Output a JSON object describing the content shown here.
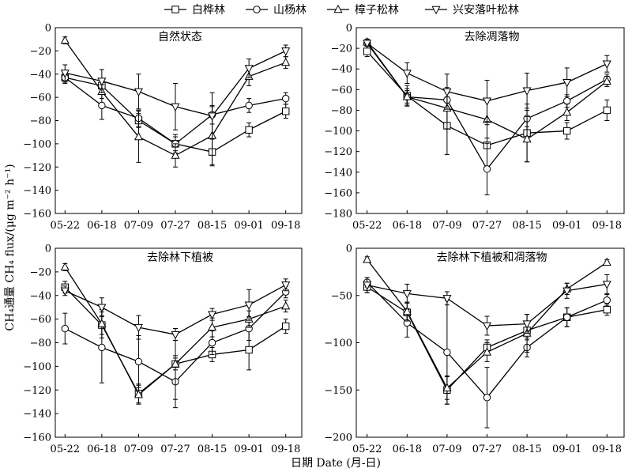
{
  "figure": {
    "ylabel": "CH₄通量 CH₄ flux/(μg m⁻² h⁻¹)",
    "xlabel": "日期 Date (月-日)"
  },
  "legend": [
    {
      "name": "白桦林",
      "marker": "square"
    },
    {
      "name": "山杨林",
      "marker": "circle"
    },
    {
      "name": "樟子松林",
      "marker": "triangle-up"
    },
    {
      "name": "兴安落叶松林",
      "marker": "triangle-down"
    }
  ],
  "chart_data": [
    {
      "type": "line",
      "title": "自然状态",
      "categories": [
        "05-22",
        "06-18",
        "07-09",
        "07-27",
        "08-15",
        "09-01",
        "09-18"
      ],
      "ylim": [
        -160,
        0
      ],
      "yticks": [
        0,
        -20,
        -40,
        -60,
        -80,
        -100,
        -120,
        -140,
        -160
      ],
      "series": [
        {
          "name": "白桦林",
          "values": [
            -43,
            -50,
            -80,
            -100,
            -107,
            -88,
            -72
          ],
          "errors": [
            5,
            5,
            6,
            8,
            12,
            6,
            6
          ]
        },
        {
          "name": "山杨林",
          "values": [
            -43,
            -67,
            -78,
            -100,
            -75,
            -67,
            -61
          ],
          "errors": [
            4,
            12,
            7,
            6,
            8,
            6,
            5
          ]
        },
        {
          "name": "樟子松林",
          "values": [
            -11,
            -55,
            -94,
            -110,
            -93,
            -42,
            -30
          ],
          "errors": [
            3,
            6,
            22,
            10,
            25,
            8,
            5
          ]
        },
        {
          "name": "兴安落叶松林",
          "values": [
            -39,
            -46,
            -55,
            -68,
            -76,
            -35,
            -20
          ],
          "errors": [
            7,
            10,
            15,
            20,
            20,
            8,
            5
          ]
        }
      ]
    },
    {
      "type": "line",
      "title": "去除凋落物",
      "categories": [
        "05-22",
        "06-18",
        "07-09",
        "07-27",
        "08-15",
        "09-01",
        "09-18"
      ],
      "ylim": [
        -180,
        0
      ],
      "yticks": [
        0,
        -20,
        -40,
        -60,
        -80,
        -100,
        -120,
        -140,
        -160,
        -180
      ],
      "series": [
        {
          "name": "白桦林",
          "values": [
            -23,
            -66,
            -95,
            -114,
            -102,
            -100,
            -80
          ],
          "errors": [
            5,
            10,
            28,
            20,
            28,
            8,
            10
          ]
        },
        {
          "name": "山杨林",
          "values": [
            -15,
            -67,
            -70,
            -137,
            -88,
            -71,
            -50
          ],
          "errors": [
            3,
            8,
            7,
            25,
            8,
            6,
            5
          ]
        },
        {
          "name": "樟子松林",
          "values": [
            -14,
            -67,
            -78,
            -89,
            -108,
            -82,
            -52
          ],
          "errors": [
            3,
            6,
            20,
            18,
            22,
            8,
            5
          ]
        },
        {
          "name": "兴安落叶松林",
          "values": [
            -15,
            -44,
            -62,
            -71,
            -61,
            -53,
            -35
          ],
          "errors": [
            3,
            10,
            17,
            20,
            17,
            14,
            8
          ]
        }
      ]
    },
    {
      "type": "line",
      "title": "去除林下植被",
      "categories": [
        "05-22",
        "06-18",
        "07-09",
        "07-27",
        "08-15",
        "09-01",
        "09-18"
      ],
      "ylim": [
        -160,
        0
      ],
      "yticks": [
        0,
        -20,
        -40,
        -60,
        -80,
        -100,
        -120,
        -140,
        -160
      ],
      "series": [
        {
          "name": "白桦林",
          "values": [
            -33,
            -65,
            -123,
            -98,
            -90,
            -86,
            -66
          ],
          "errors": [
            5,
            8,
            8,
            5,
            6,
            17,
            6
          ]
        },
        {
          "name": "山杨林",
          "values": [
            -68,
            -84,
            -96,
            -113,
            -80,
            -68,
            -37
          ],
          "errors": [
            13,
            30,
            22,
            22,
            10,
            10,
            5
          ]
        },
        {
          "name": "樟子松林",
          "values": [
            -16,
            -64,
            -124,
            -98,
            -67,
            -60,
            -49
          ],
          "errors": [
            3,
            12,
            8,
            30,
            8,
            7,
            5
          ]
        },
        {
          "name": "兴安落叶松林",
          "values": [
            -36,
            -50,
            -67,
            -73,
            -56,
            -48,
            -31
          ],
          "errors": [
            4,
            8,
            10,
            5,
            5,
            13,
            5
          ]
        }
      ]
    },
    {
      "type": "line",
      "title": "去除林下植被和凋落物",
      "categories": [
        "05-22",
        "06-18",
        "07-09",
        "07-27",
        "08-15",
        "09-01",
        "09-18"
      ],
      "ylim": [
        -200,
        0
      ],
      "yticks": [
        0,
        -50,
        -100,
        -150,
        -200
      ],
      "series": [
        {
          "name": "白桦林",
          "values": [
            -41,
            -68,
            -150,
            -105,
            -87,
            -73,
            -65
          ],
          "errors": [
            6,
            10,
            15,
            8,
            10,
            10,
            6
          ]
        },
        {
          "name": "山杨林",
          "values": [
            -36,
            -79,
            -110,
            -158,
            -105,
            -73,
            -55
          ],
          "errors": [
            5,
            15,
            55,
            32,
            10,
            10,
            6
          ]
        },
        {
          "name": "樟子松林",
          "values": [
            -12,
            -67,
            -148,
            -110,
            -90,
            -43,
            -15
          ],
          "errors": [
            3,
            10,
            12,
            10,
            20,
            6,
            3
          ]
        },
        {
          "name": "兴安落叶松林",
          "values": [
            -39,
            -48,
            -53,
            -82,
            -80,
            -45,
            -38
          ],
          "errors": [
            8,
            10,
            7,
            10,
            10,
            8,
            10
          ]
        }
      ]
    }
  ]
}
